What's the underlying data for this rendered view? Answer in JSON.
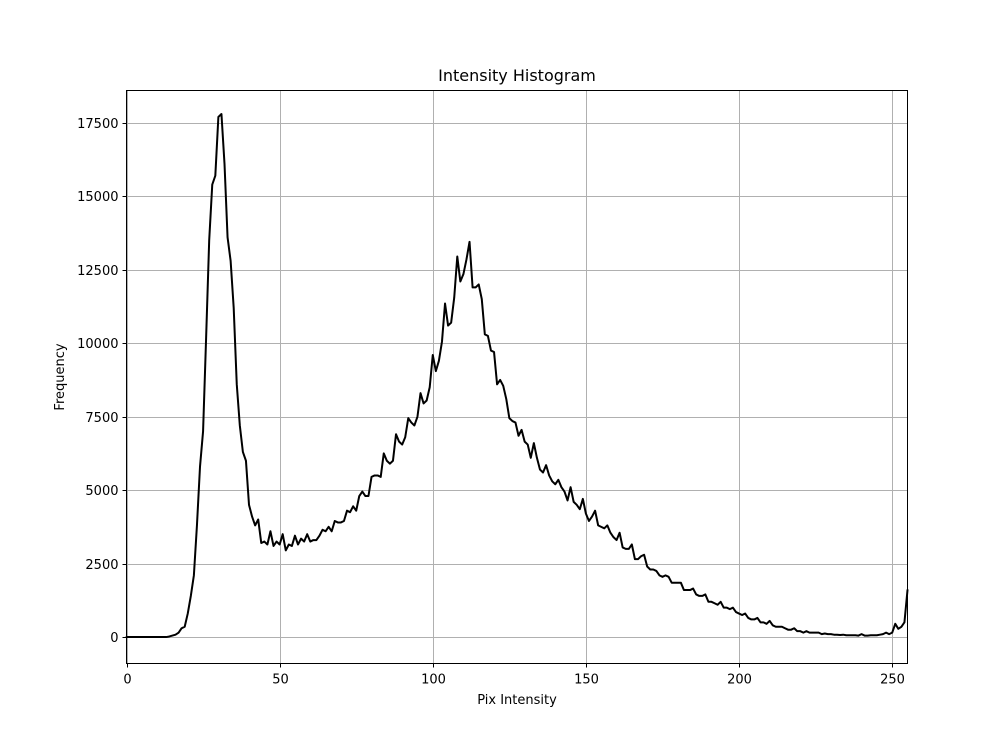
{
  "chart_data": {
    "type": "line",
    "title": "Intensity Histogram",
    "xlabel": "Pix Intensity",
    "ylabel": "Frequency",
    "xlim": [
      0,
      255
    ],
    "ylim": [
      -900,
      18600
    ],
    "xticks": [
      0,
      50,
      100,
      150,
      200,
      250
    ],
    "yticks": [
      0,
      2500,
      5000,
      7500,
      10000,
      12500,
      15000,
      17500
    ],
    "grid": true,
    "line_color": "#000000",
    "series": [
      {
        "x": [
          0,
          1,
          2,
          3,
          4,
          5,
          6,
          7,
          8,
          9,
          10,
          11,
          12,
          13,
          14,
          15,
          16,
          17,
          18,
          19,
          20,
          21,
          22,
          23,
          24,
          25,
          26,
          27,
          28,
          29,
          30,
          31,
          32,
          33,
          34,
          35,
          36,
          37,
          38,
          39,
          40,
          41,
          42,
          43,
          44,
          45,
          46,
          47,
          48,
          49,
          50,
          51,
          52,
          53,
          54,
          55,
          56,
          57,
          58,
          59,
          60,
          61,
          62,
          63,
          64,
          65,
          66,
          67,
          68,
          69,
          70,
          71,
          72,
          73,
          74,
          75,
          76,
          77,
          78,
          79,
          80,
          81,
          82,
          83,
          84,
          85,
          86,
          87,
          88,
          89,
          90,
          91,
          92,
          93,
          94,
          95,
          96,
          97,
          98,
          99,
          100,
          101,
          102,
          103,
          104,
          105,
          106,
          107,
          108,
          109,
          110,
          111,
          112,
          113,
          114,
          115,
          116,
          117,
          118,
          119,
          120,
          121,
          122,
          123,
          124,
          125,
          126,
          127,
          128,
          129,
          130,
          131,
          132,
          133,
          134,
          135,
          136,
          137,
          138,
          139,
          140,
          141,
          142,
          143,
          144,
          145,
          146,
          147,
          148,
          149,
          150,
          151,
          152,
          153,
          154,
          155,
          156,
          157,
          158,
          159,
          160,
          161,
          162,
          163,
          164,
          165,
          166,
          167,
          168,
          169,
          170,
          171,
          172,
          173,
          174,
          175,
          176,
          177,
          178,
          179,
          180,
          181,
          182,
          183,
          184,
          185,
          186,
          187,
          188,
          189,
          190,
          191,
          192,
          193,
          194,
          195,
          196,
          197,
          198,
          199,
          200,
          201,
          202,
          203,
          204,
          205,
          206,
          207,
          208,
          209,
          210,
          211,
          212,
          213,
          214,
          215,
          216,
          217,
          218,
          219,
          220,
          221,
          222,
          223,
          224,
          225,
          226,
          227,
          228,
          229,
          230,
          231,
          232,
          233,
          234,
          235,
          236,
          237,
          238,
          239,
          240,
          241,
          242,
          243,
          244,
          245,
          246,
          247,
          248,
          249,
          250,
          251,
          252,
          253,
          254,
          255
        ],
        "values": [
          0,
          0,
          0,
          0,
          0,
          0,
          0,
          0,
          0,
          0,
          0,
          0,
          0,
          0,
          20,
          50,
          80,
          150,
          300,
          350,
          800,
          1400,
          2100,
          3800,
          5800,
          7000,
          10200,
          13500,
          15400,
          15700,
          17700,
          17800,
          16100,
          13600,
          12800,
          11200,
          8600,
          7200,
          6300,
          6000,
          4500,
          4100,
          3800,
          4000,
          3200,
          3250,
          3150,
          3600,
          3100,
          3250,
          3150,
          3500,
          2950,
          3150,
          3100,
          3450,
          3150,
          3350,
          3250,
          3500,
          3250,
          3300,
          3300,
          3450,
          3650,
          3600,
          3750,
          3600,
          3950,
          3900,
          3900,
          3950,
          4300,
          4250,
          4450,
          4300,
          4800,
          4950,
          4800,
          4800,
          5450,
          5500,
          5500,
          5450,
          6250,
          6000,
          5900,
          6000,
          6900,
          6650,
          6550,
          6800,
          7450,
          7300,
          7200,
          7500,
          8300,
          7950,
          8050,
          8500,
          9600,
          9050,
          9400,
          10050,
          11350,
          10600,
          10700,
          11550,
          12950,
          12100,
          12350,
          12850,
          13450,
          11900,
          11900,
          12000,
          11500,
          10300,
          10250,
          9750,
          9700,
          8600,
          8750,
          8550,
          8100,
          7450,
          7350,
          7300,
          6850,
          7050,
          6650,
          6550,
          6100,
          6600,
          6100,
          5700,
          5600,
          5850,
          5500,
          5300,
          5200,
          5350,
          5100,
          4950,
          4650,
          5100,
          4600,
          4500,
          4350,
          4700,
          4200,
          3950,
          4100,
          4300,
          3800,
          3750,
          3700,
          3800,
          3550,
          3400,
          3300,
          3550,
          3050,
          3000,
          3000,
          3150,
          2650,
          2650,
          2750,
          2800,
          2400,
          2300,
          2300,
          2250,
          2100,
          2050,
          2100,
          2050,
          1850,
          1850,
          1850,
          1850,
          1600,
          1600,
          1600,
          1650,
          1450,
          1400,
          1400,
          1450,
          1200,
          1200,
          1150,
          1100,
          1200,
          1000,
          1000,
          950,
          1000,
          850,
          800,
          750,
          800,
          650,
          600,
          600,
          650,
          500,
          500,
          450,
          550,
          400,
          350,
          350,
          350,
          300,
          250,
          250,
          300,
          200,
          200,
          150,
          200,
          150,
          150,
          150,
          150,
          100,
          120,
          100,
          100,
          80,
          80,
          70,
          80,
          60,
          60,
          60,
          60,
          50,
          100,
          50,
          50,
          60,
          60,
          60,
          80,
          100,
          150,
          100,
          150,
          450,
          280,
          350,
          500,
          1600
        ]
      }
    ]
  }
}
